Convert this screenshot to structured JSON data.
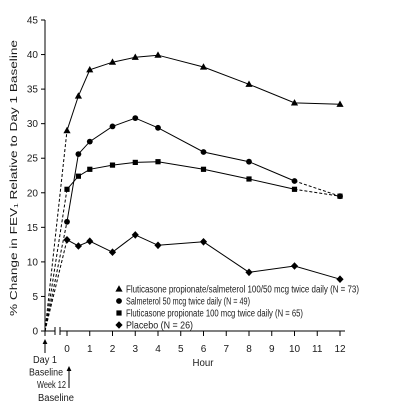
{
  "chart_data": {
    "type": "line",
    "xlabel": "Hour",
    "ylabel": "% Change in FEV₁ Relative to Day 1 Baseline",
    "xlim": [
      0,
      12
    ],
    "ylim": [
      0,
      45
    ],
    "xticks": [
      0,
      1,
      2,
      3,
      4,
      5,
      6,
      7,
      8,
      9,
      10,
      11,
      12
    ],
    "yticks": [
      0,
      5,
      10,
      15,
      20,
      25,
      30,
      35,
      40,
      45
    ],
    "grid": false,
    "legend_position": "bottom-right",
    "day1_baseline_value": 0,
    "x": [
      0,
      0.5,
      1,
      2,
      3,
      4,
      6,
      8,
      10,
      12
    ],
    "series": [
      {
        "name": "Fluticasone propionate/salmeterol 100/50 mcg twice daily (N = 73)",
        "marker": "triangle",
        "values": [
          29.0,
          34.0,
          37.8,
          38.9,
          39.6,
          39.9,
          38.2,
          35.7,
          33.0,
          32.8
        ]
      },
      {
        "name": "Salmeterol 50 mcg twice daily (N = 49)",
        "marker": "circle",
        "values": [
          15.8,
          25.6,
          27.4,
          29.6,
          30.8,
          29.4,
          25.9,
          24.5,
          21.7,
          19.5
        ]
      },
      {
        "name": "Fluticasone propionate 100 mcg twice daily (N = 65)",
        "marker": "square",
        "values": [
          20.5,
          22.4,
          23.4,
          24.0,
          24.4,
          24.5,
          23.4,
          22.0,
          20.5,
          19.5
        ]
      },
      {
        "name": "Placebo (N = 26)",
        "marker": "diamond",
        "values": [
          13.2,
          12.3,
          13.0,
          11.4,
          13.9,
          12.4,
          12.9,
          8.5,
          9.4,
          7.5
        ]
      }
    ],
    "annotations": [
      {
        "label": "Day 1",
        "sublabel": "Baseline"
      },
      {
        "label": "Week 12",
        "sublabel": "Baseline"
      }
    ]
  }
}
